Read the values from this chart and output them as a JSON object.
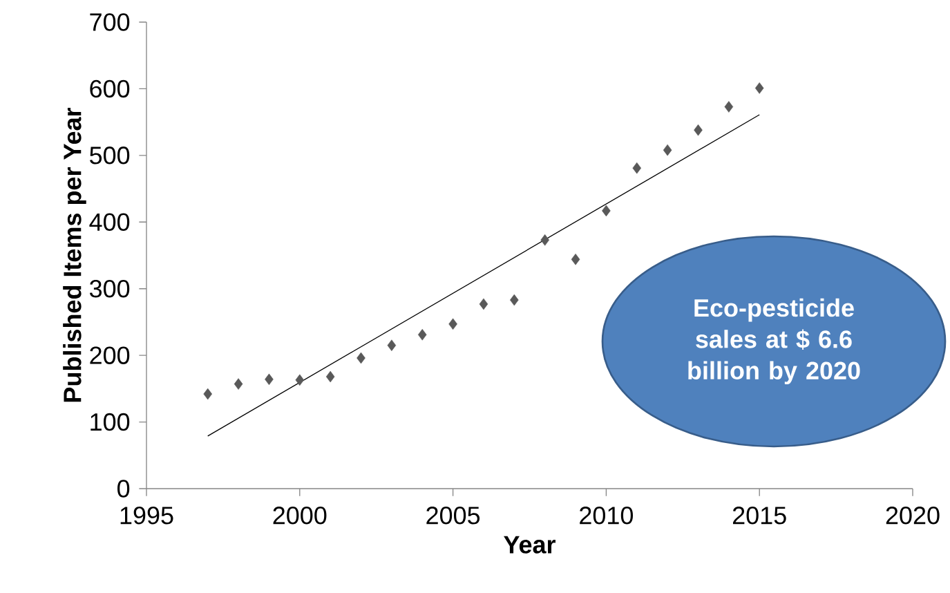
{
  "chart_data": {
    "type": "scatter",
    "xlabel": "Year",
    "ylabel": "Published Items per Year",
    "xlim": [
      1995,
      2020
    ],
    "xticks": [
      1995,
      2000,
      2005,
      2010,
      2015,
      2020
    ],
    "ylim": [
      0,
      700
    ],
    "yticks": [
      0,
      100,
      200,
      300,
      400,
      500,
      600,
      700
    ],
    "grid": false,
    "marker": "diamond",
    "series": [
      {
        "color": "#595959",
        "x": [
          1997,
          1998,
          1999,
          2000,
          2001,
          2002,
          2003,
          2004,
          2005,
          2006,
          2007,
          2008,
          2009,
          2010,
          2011,
          2012,
          2013,
          2014,
          2015
        ],
        "values": [
          142,
          157,
          164,
          163,
          168,
          196,
          215,
          231,
          247,
          277,
          283,
          373,
          344,
          417,
          481,
          508,
          538,
          573,
          601
        ]
      },
      {
        "type": "line",
        "color": "#000000",
        "marker": "none",
        "x": [
          1997,
          2015
        ],
        "values": [
          79,
          561
        ]
      }
    ],
    "annotations": [
      "Eco-pesticide sales at $ 6.6 billion by 2020"
    ]
  }
}
